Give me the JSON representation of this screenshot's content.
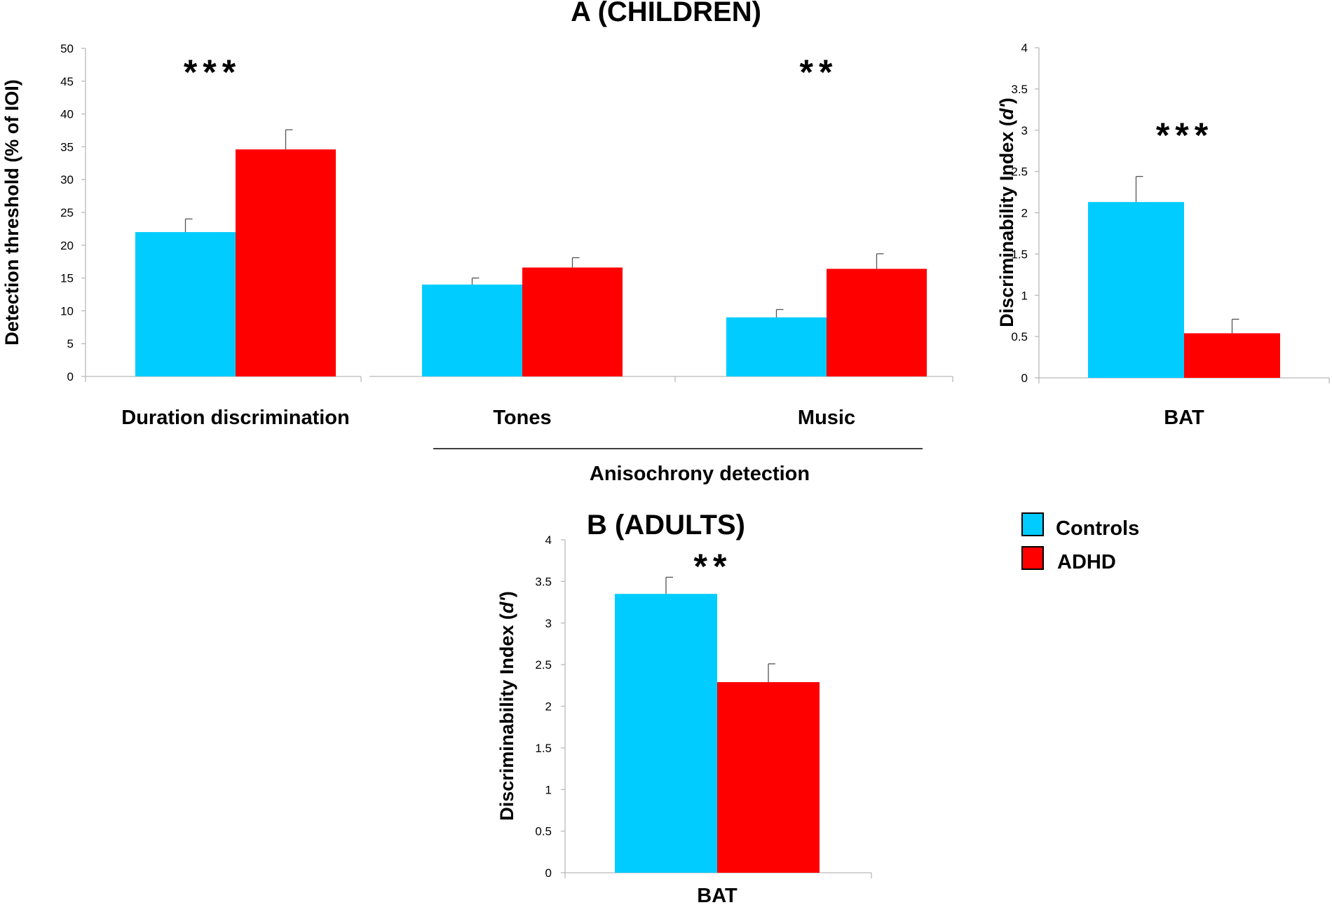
{
  "colors": {
    "controls": "#00CCFF",
    "adhd": "#FF0000"
  },
  "titles": {
    "children": "A (CHILDREN)",
    "adults": "B (ADULTS)"
  },
  "group_label": "Anisochrony detection",
  "legend": [
    {
      "name": "Controls",
      "color_key": "controls"
    },
    {
      "name": "ADHD",
      "color_key": "adhd"
    }
  ],
  "chart_data": [
    {
      "id": "children-threshold",
      "type": "bar",
      "title": "A (CHILDREN)",
      "ylabel": "Detection threshold (% of IOI)",
      "xlabel": "",
      "ylim": [
        0,
        50
      ],
      "yticks": [
        "0",
        "5",
        "10",
        "15",
        "20",
        "25",
        "30",
        "35",
        "40",
        "45",
        "50"
      ],
      "categories": [
        "Duration discrimination",
        "Tones",
        "Music"
      ],
      "series": [
        {
          "name": "Controls",
          "values": [
            22,
            14,
            9
          ],
          "errors": [
            2,
            1,
            1.2
          ]
        },
        {
          "name": "ADHD",
          "values": [
            34.6,
            16.6,
            16.4
          ],
          "errors": [
            3,
            1.5,
            2.3
          ]
        }
      ],
      "significance": [
        "***",
        "",
        "**"
      ],
      "group_brackets": [
        {
          "label": "Anisochrony detection",
          "categories": [
            "Tones",
            "Music"
          ]
        }
      ]
    },
    {
      "id": "children-bat",
      "type": "bar",
      "title": "A (CHILDREN)",
      "ylabel": "Discriminability Index (d')",
      "xlabel": "",
      "ylim": [
        0,
        4
      ],
      "yticks": [
        "0",
        "0.5",
        "1",
        "1.5",
        "2",
        "2.5",
        "3",
        "3.5",
        "4"
      ],
      "categories": [
        "BAT"
      ],
      "series": [
        {
          "name": "Controls",
          "values": [
            2.13
          ],
          "errors": [
            0.31
          ]
        },
        {
          "name": "ADHD",
          "values": [
            0.54
          ],
          "errors": [
            0.17
          ]
        }
      ],
      "significance": [
        "***"
      ]
    },
    {
      "id": "adults-bat",
      "type": "bar",
      "title": "B (ADULTS)",
      "ylabel": "Discriminability Index (d')",
      "xlabel": "",
      "ylim": [
        0,
        4
      ],
      "yticks": [
        "0",
        "0.5",
        "1",
        "1.5",
        "2",
        "2.5",
        "3",
        "3.5",
        "4"
      ],
      "categories": [
        "BAT"
      ],
      "series": [
        {
          "name": "Controls",
          "values": [
            3.35
          ],
          "errors": [
            0.2
          ]
        },
        {
          "name": "ADHD",
          "values": [
            2.29
          ],
          "errors": [
            0.22
          ]
        }
      ],
      "significance": [
        "**"
      ]
    }
  ]
}
